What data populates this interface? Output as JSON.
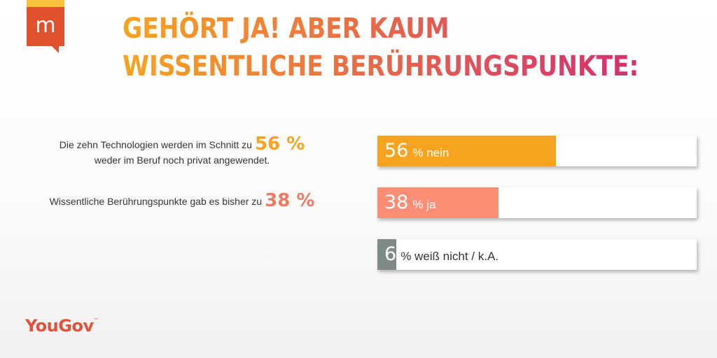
{
  "logo": {
    "letter": "m"
  },
  "headline": {
    "line1": "GEHÖRT JA! ABER KAUM",
    "line2": "WISSENTLICHE BERÜHRUNGSPUNKTE:"
  },
  "stats": [
    {
      "text_a": "Die zehn Technologien werden im Schnitt zu",
      "value": "56 %",
      "text_b": "weder im Beruf noch privat angewendet."
    },
    {
      "text_a": "Wissentliche Berührungspunkte gab es bisher zu",
      "value": "38 %"
    }
  ],
  "chart_data": {
    "type": "bar",
    "orientation": "horizontal",
    "ylim": [
      0,
      100
    ],
    "bars": [
      {
        "value": 56,
        "value_label": "56",
        "label": "% nein",
        "color": "#f6a41f"
      },
      {
        "value": 38,
        "value_label": "38",
        "label": "% ja",
        "color": "#fe8d75"
      },
      {
        "value": 6,
        "value_label": "6",
        "label": "% weiß nicht / k.A.",
        "color": "#7f8985"
      }
    ]
  },
  "footer": {
    "brand": "YouGov",
    "mark": "™"
  },
  "colors": {
    "accent_orange": "#f6a41f",
    "accent_salmon": "#fe8d75",
    "accent_gray": "#7f8985",
    "brand_red": "#e2513a"
  }
}
